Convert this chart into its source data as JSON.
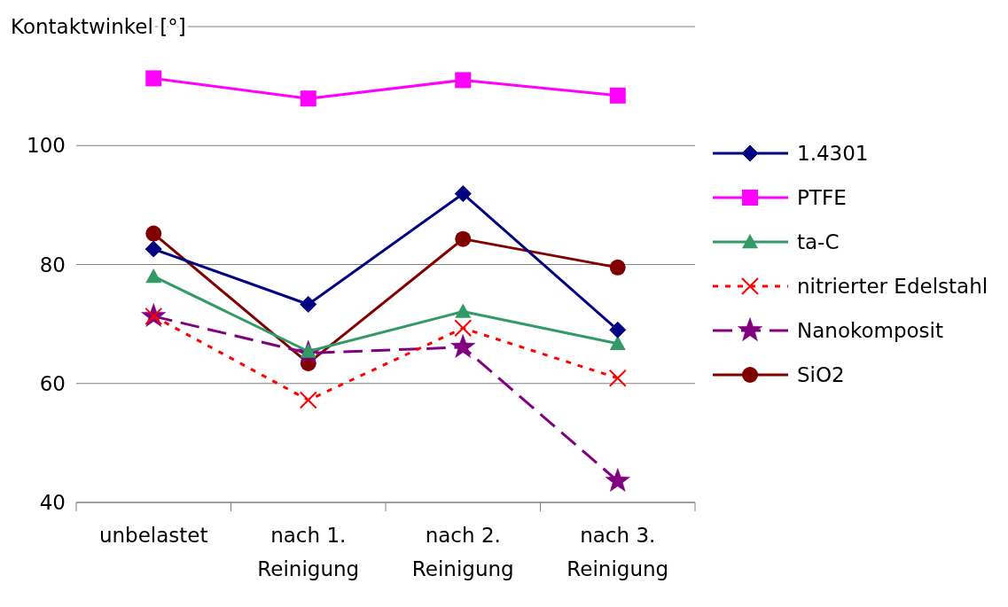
{
  "chart_data": {
    "type": "line",
    "ylabel": "Kontaktwinkel [°]",
    "categories": [
      "unbelastet",
      "nach 1.\nReinigung",
      "nach 2.\nReinigung",
      "nach 3.\nReinigung"
    ],
    "ylim": [
      40,
      120
    ],
    "yticks": [
      40,
      60,
      80,
      100,
      {
        "value": 120,
        "label": null
      }
    ],
    "grid": "y",
    "legend": "right",
    "series": [
      {
        "name": "1.4301",
        "color": "#000080",
        "marker": "diamond",
        "line_style": "solid",
        "values": [
          82.6,
          73.3,
          91.9,
          69.0
        ]
      },
      {
        "name": "PTFE",
        "color": "#ff00ff",
        "marker": "square",
        "line_style": "solid",
        "values": [
          111.3,
          107.9,
          111.0,
          108.4
        ]
      },
      {
        "name": "ta-C",
        "color": "#339966",
        "marker": "triangle",
        "line_style": "solid",
        "values": [
          78.0,
          65.4,
          72.1,
          66.7
        ]
      },
      {
        "name": "nitrierter Edelstahl",
        "color": "#ff0000",
        "marker": "cross",
        "line_style": "dotted",
        "values": [
          71.3,
          57.2,
          69.3,
          60.9
        ]
      },
      {
        "name": "Nanokomposit",
        "color": "#800080",
        "marker": "star",
        "line_style": "dashed",
        "values": [
          71.3,
          65.1,
          66.1,
          43.6
        ]
      },
      {
        "name": "SiO2",
        "color": "#800000",
        "marker": "circle",
        "line_style": "solid",
        "values": [
          85.2,
          63.4,
          84.3,
          79.5
        ]
      }
    ]
  }
}
